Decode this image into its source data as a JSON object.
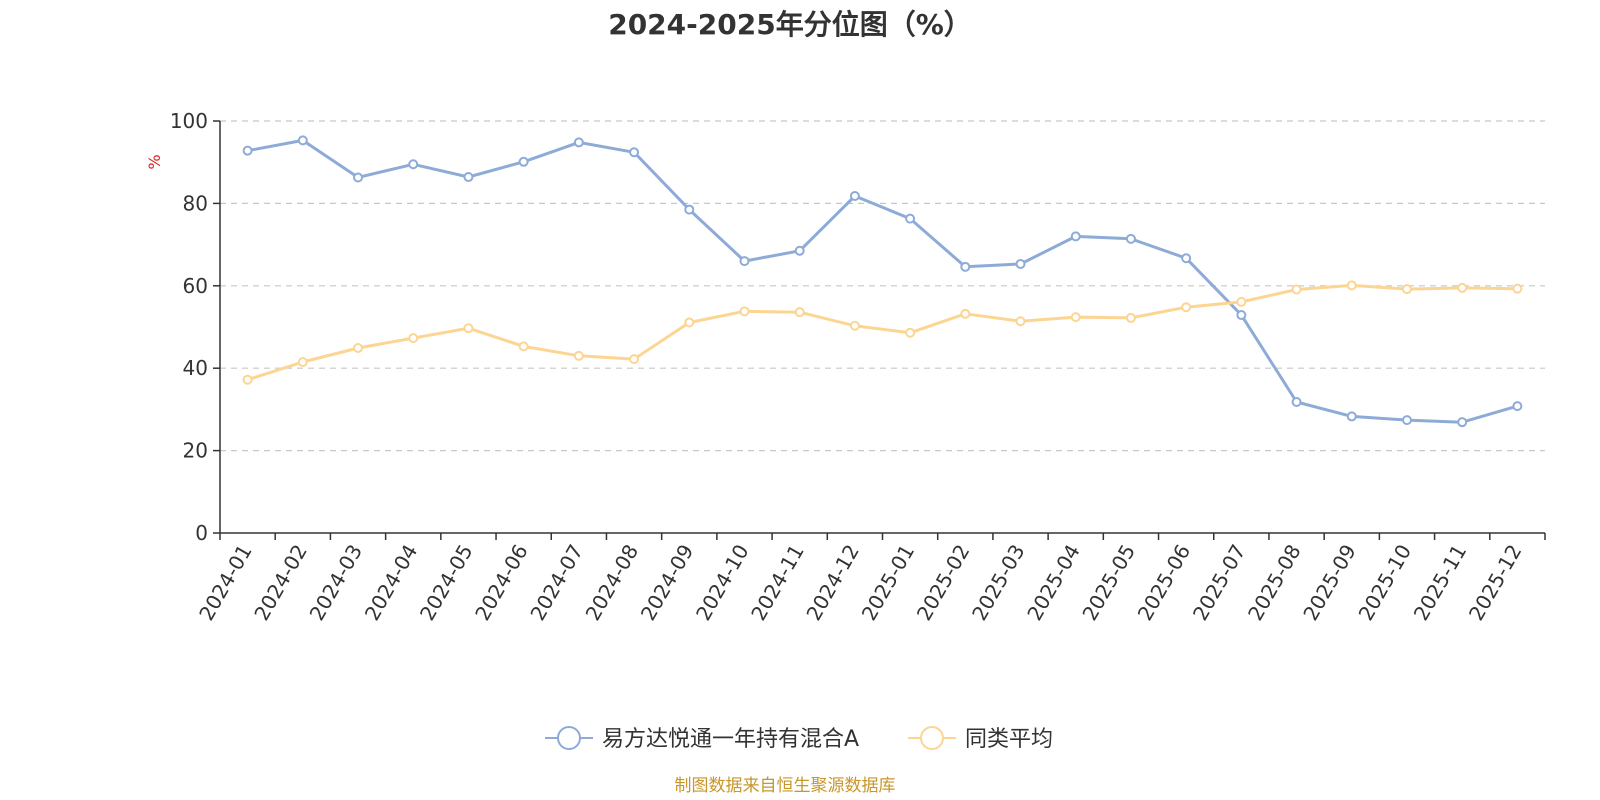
{
  "chart_data": {
    "type": "line",
    "title": "2024-2025年分位图（%）",
    "ylabel": "%",
    "xlabel": "",
    "ylim": [
      0,
      100
    ],
    "yticks": [
      0,
      20,
      40,
      60,
      80,
      100
    ],
    "grid": true,
    "legend_position": "bottom-center",
    "categories": [
      "2024-01",
      "2024-02",
      "2024-03",
      "2024-04",
      "2024-05",
      "2024-06",
      "2024-07",
      "2024-08",
      "2024-09",
      "2024-10",
      "2024-11",
      "2024-12",
      "2025-01",
      "2025-02",
      "2025-03",
      "2025-04",
      "2025-05",
      "2025-06",
      "2025-07",
      "2025-08",
      "2025-09",
      "2025-10",
      "2025-11",
      "2025-12"
    ],
    "series": [
      {
        "name": "易方达悦通一年持有混合A",
        "color": "#8eabd8",
        "values": [
          92.8,
          95.3,
          86.3,
          89.5,
          86.4,
          90.1,
          94.8,
          92.4,
          78.5,
          66.0,
          68.5,
          81.8,
          76.3,
          64.6,
          65.3,
          72.0,
          71.4,
          66.7,
          52.9,
          31.8,
          28.3,
          27.4,
          26.9,
          30.8
        ]
      },
      {
        "name": "同类平均",
        "color": "#fcd592",
        "values": [
          37.2,
          41.5,
          44.9,
          47.3,
          49.7,
          45.3,
          43.0,
          42.2,
          51.1,
          53.8,
          53.6,
          50.3,
          48.6,
          53.2,
          51.4,
          52.4,
          52.2,
          54.8,
          56.1,
          59.1,
          60.1,
          59.2,
          59.5,
          59.3
        ]
      }
    ],
    "source": "制图数据来自恒生聚源数据库"
  }
}
